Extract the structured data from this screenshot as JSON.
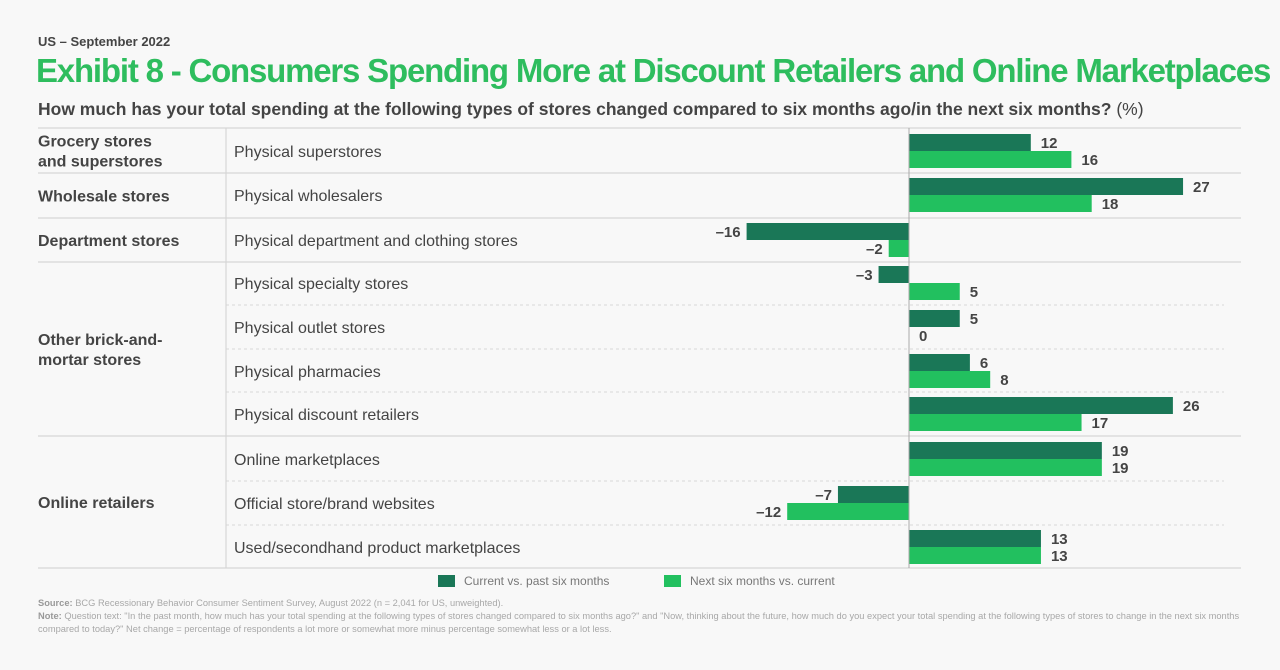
{
  "header": {
    "eyebrow": "US – September 2022",
    "title": "Exhibit 8 - Consumers Spending More at Discount Retailers and Online Marketplaces",
    "subtitle": "How much has your total spending at the following types of stores changed compared to six months ago/in the next six months?",
    "subtitle_unit": "(%)"
  },
  "colors": {
    "current": "#1a7757",
    "next": "#22c05f",
    "text": "#444444",
    "title": "#2ebd5e"
  },
  "chart_data": {
    "type": "bar",
    "orientation": "horizontal",
    "title": "Exhibit 8 - Consumers Spending More at Discount Retailers and Online Marketplaces",
    "xlabel": "",
    "ylabel": "",
    "unit": "%",
    "grid": false,
    "legend_position": "bottom",
    "groups": [
      {
        "name": "Grocery stores and superstores",
        "items": [
          "Physical superstores"
        ]
      },
      {
        "name": "Wholesale stores",
        "items": [
          "Physical wholesalers"
        ]
      },
      {
        "name": "Department stores",
        "items": [
          "Physical department and clothing stores"
        ]
      },
      {
        "name": "Other brick-and-mortar stores",
        "items": [
          "Physical specialty stores",
          "Physical outlet stores",
          "Physical pharmacies",
          "Physical discount retailers"
        ]
      },
      {
        "name": "Online retailers",
        "items": [
          "Online marketplaces",
          "Official store/brand websites",
          "Used/secondhand product marketplaces"
        ]
      }
    ],
    "categories": [
      "Physical superstores",
      "Physical wholesalers",
      "Physical department and clothing stores",
      "Physical specialty stores",
      "Physical outlet stores",
      "Physical pharmacies",
      "Physical discount retailers",
      "Online marketplaces",
      "Official store/brand websites",
      "Used/secondhand product marketplaces"
    ],
    "series": [
      {
        "name": "Current vs. past six months",
        "values": [
          12,
          27,
          -16,
          -3,
          5,
          6,
          26,
          19,
          -7,
          13
        ]
      },
      {
        "name": "Next six months vs. current",
        "values": [
          16,
          18,
          -2,
          5,
          0,
          8,
          17,
          19,
          -12,
          13
        ]
      }
    ],
    "xlim": [
      -20,
      30
    ]
  },
  "footer": {
    "source_label": "Source:",
    "source_text": "BCG Recessionary Behavior Consumer Sentiment Survey, August 2022 (n = 2,041 for US, unweighted).",
    "note_label": "Note:",
    "note_text": "Question text: \"In the past month, how much has your total spending at the following types of stores changed compared to six months ago?\" and \"Now, thinking about the future, how much do you expect your total spending at the following types of stores to change in the next six months compared to today?\" Net change = percentage of respondents a lot more or somewhat more minus percentage somewhat less or a lot less."
  }
}
